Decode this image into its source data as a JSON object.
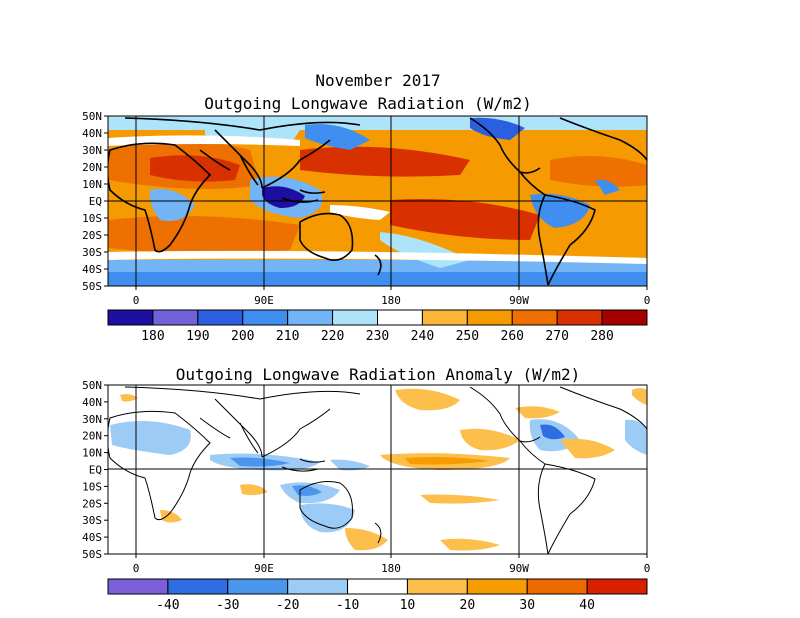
{
  "header": {
    "month_title": "November 2017",
    "top_title": "Outgoing Longwave Radiation (W/m2)",
    "bottom_title": "Outgoing Longwave Radiation Anomaly (W/m2)"
  },
  "axes": {
    "lat_labels": [
      "50N",
      "40N",
      "30N",
      "20N",
      "10N",
      "EQ",
      "10S",
      "20S",
      "30S",
      "40S",
      "50S"
    ],
    "lon_labels": [
      "0",
      "90E",
      "180",
      "90W",
      "0"
    ],
    "lat_range": [
      -50,
      50
    ],
    "lon_range": [
      -22,
      360
    ]
  },
  "colorbars": {
    "olr": {
      "colors": [
        "#1d0fa0",
        "#7262d8",
        "#2b5fe0",
        "#3f8ef0",
        "#72b4f6",
        "#aee4fa",
        "#ffffff",
        "#fcb638",
        "#f59a00",
        "#ed7000",
        "#d93000",
        "#a40000"
      ],
      "labels": [
        "180",
        "190",
        "200",
        "210",
        "220",
        "230",
        "240",
        "250",
        "260",
        "270",
        "280"
      ]
    },
    "anomaly": {
      "colors": [
        "#7a5fd8",
        "#2f6ee2",
        "#4a96ec",
        "#9cccf6",
        "#ffffff",
        "#fdbf4c",
        "#f69c00",
        "#ec6a00",
        "#d82000"
      ],
      "labels": [
        "-40",
        "-30",
        "-20",
        "-10",
        "10",
        "20",
        "30",
        "40"
      ]
    }
  }
}
